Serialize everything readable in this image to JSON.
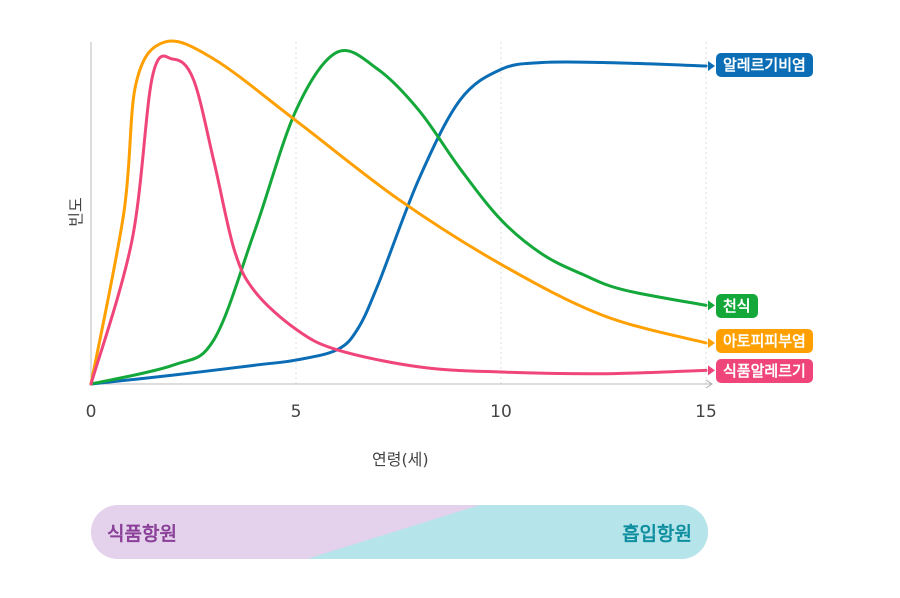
{
  "chart_data": {
    "type": "line",
    "xlabel": "연령(세)",
    "ylabel": "빈도",
    "xlim": [
      0,
      15
    ],
    "ylim": [
      0,
      100
    ],
    "x_ticks": [
      "0",
      "5",
      "10",
      "15"
    ],
    "grid": "vertical dotted at x=5,10,15",
    "series": [
      {
        "name": "알레르기비염",
        "color": "#0a6db5",
        "x": [
          0,
          2,
          4,
          5,
          6,
          6.5,
          7,
          8,
          9,
          10,
          11,
          12.5,
          15
        ],
        "y": [
          0,
          2.6,
          5.5,
          7,
          10,
          16,
          29,
          60,
          83,
          92,
          94,
          94,
          93
        ]
      },
      {
        "name": "천식",
        "color": "#14a83a",
        "x": [
          0,
          2,
          3,
          4,
          5,
          6,
          7,
          8,
          9,
          10,
          11,
          12,
          13,
          15
        ],
        "y": [
          0,
          5.5,
          13,
          45,
          80,
          97,
          92,
          80,
          63,
          48,
          38,
          32,
          27.5,
          23
        ]
      },
      {
        "name": "아토피피부염",
        "color": "#ffa000",
        "x": [
          0,
          0.8,
          1.1,
          1.8,
          3,
          5,
          7.5,
          10,
          12.5,
          15
        ],
        "y": [
          0,
          50,
          88,
          100,
          95,
          77,
          54,
          35,
          20,
          12
        ]
      },
      {
        "name": "식품알레르기",
        "color": "#f0457a",
        "x": [
          0,
          1,
          1.5,
          2,
          2.5,
          3,
          3.5,
          4,
          5,
          6,
          8,
          10,
          12.5,
          15
        ],
        "y": [
          0,
          42,
          90,
          95,
          89,
          65,
          39,
          27,
          16,
          10,
          5,
          3.5,
          3,
          4
        ]
      }
    ]
  },
  "band": {
    "left_label": "식품항원",
    "right_label": "흡입항원",
    "left_color": "#e4d1eb",
    "right_color": "#b5e4ea"
  }
}
